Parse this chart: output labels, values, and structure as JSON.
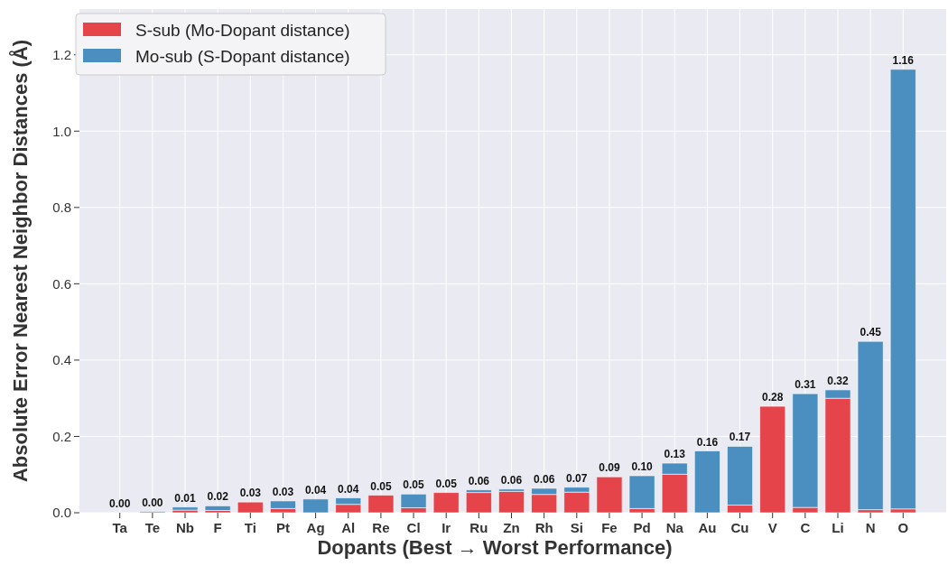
{
  "chart_data": {
    "type": "bar",
    "stacked": true,
    "xlabel": "Dopants (Best → Worst Performance)",
    "ylabel": "Absolute Error Nearest Neighbor Distances (Å)",
    "categories": [
      "Ta",
      "Te",
      "Nb",
      "F",
      "Ti",
      "Pt",
      "Ag",
      "Al",
      "Re",
      "Cl",
      "Ir",
      "Ru",
      "Zn",
      "Rh",
      "Si",
      "Fe",
      "Pd",
      "Na",
      "Au",
      "Cu",
      "V",
      "C",
      "Li",
      "N",
      "O"
    ],
    "series": [
      {
        "name": "S-sub (Mo-Dopant distance)",
        "color": "#e5444b",
        "values": [
          0,
          0,
          0.007,
          0.006,
          0.028,
          0.011,
          0,
          0.022,
          0.046,
          0.013,
          0.053,
          0.053,
          0.056,
          0.048,
          0.054,
          0.094,
          0.011,
          0.101,
          0,
          0.02,
          0.279,
          0.014,
          0.3,
          0.008,
          0.01
        ]
      },
      {
        "name": "Mo-sub (S-Dopant distance)",
        "color": "#4a8fc0",
        "values": [
          0,
          0.003,
          0.008,
          0.012,
          0,
          0.02,
          0.036,
          0.017,
          0,
          0.036,
          0,
          0.007,
          0.006,
          0.016,
          0.013,
          0,
          0.086,
          0.029,
          0.162,
          0.154,
          0,
          0.298,
          0.022,
          0.441,
          1.152
        ]
      }
    ],
    "totals": [
      "0.00",
      "0.00",
      "0.01",
      "0.02",
      "0.03",
      "0.03",
      "0.04",
      "0.04",
      "0.05",
      "0.05",
      "0.05",
      "0.06",
      "0.06",
      "0.06",
      "0.07",
      "0.09",
      "0.10",
      "0.13",
      "0.16",
      "0.17",
      "0.28",
      "0.31",
      "0.32",
      "0.45",
      "1.16"
    ],
    "ylim": [
      0,
      1.32
    ],
    "yticks": [
      {
        "value": 0,
        "label": "0.0"
      },
      0.2,
      0.4,
      0.6,
      0.8,
      {
        "value": 1,
        "label": "1.0"
      },
      1.2
    ],
    "grid": true,
    "legend": "top left"
  }
}
